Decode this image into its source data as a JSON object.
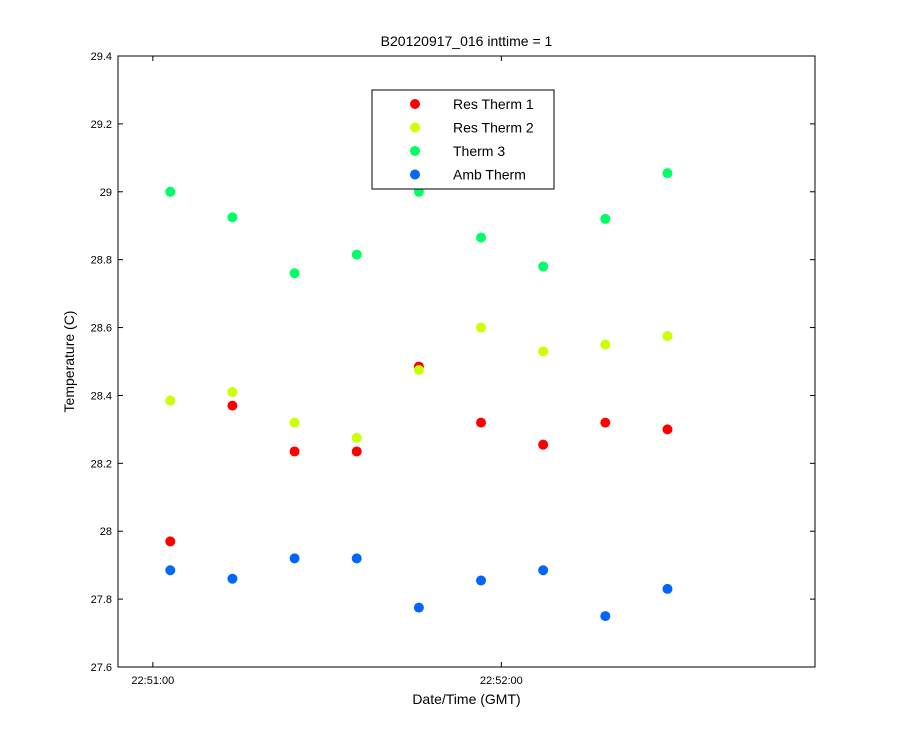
{
  "chart_data": {
    "type": "scatter",
    "title": "B20120917_016 inttime = 1",
    "xlabel": "Date/Time (GMT)",
    "ylabel": "Temperature (C)",
    "x_tick_labels": [
      "22:51:00",
      "22:52:00"
    ],
    "x_tick_values_sec": [
      0,
      60
    ],
    "xlim_sec": [
      -6,
      114
    ],
    "ylim": [
      27.6,
      29.4
    ],
    "y_ticks": [
      27.6,
      27.8,
      28,
      28.2,
      28.4,
      28.6,
      28.8,
      29,
      29.2,
      29.4
    ],
    "y_tick_labels": [
      "27.6",
      "27.8",
      "28",
      "28.2",
      "28.4",
      "28.6",
      "28.8",
      "29",
      "29.2",
      "29.4"
    ],
    "x_sec": [
      3,
      13.7,
      24.4,
      35.1,
      45.8,
      56.5,
      67.2,
      77.9,
      88.6
    ],
    "legend_position": "top-center",
    "grid": false,
    "series": [
      {
        "name": "Res Therm 1",
        "color": "#ff0000",
        "values": [
          27.97,
          28.37,
          28.235,
          28.235,
          28.485,
          28.32,
          28.255,
          28.32,
          28.3
        ]
      },
      {
        "name": "Res Therm 2",
        "color": "#ccff00",
        "values": [
          28.385,
          28.41,
          28.32,
          28.275,
          28.475,
          28.6,
          28.53,
          28.55,
          28.575
        ]
      },
      {
        "name": "Therm 3",
        "color": "#00ff66",
        "values": [
          29.0,
          28.925,
          28.76,
          28.815,
          29.0,
          28.865,
          28.78,
          28.92,
          29.055
        ]
      },
      {
        "name": "Amb Therm",
        "color": "#0066ff",
        "values": [
          27.885,
          27.86,
          27.92,
          27.92,
          27.775,
          27.855,
          27.885,
          27.75,
          27.83
        ]
      }
    ]
  }
}
